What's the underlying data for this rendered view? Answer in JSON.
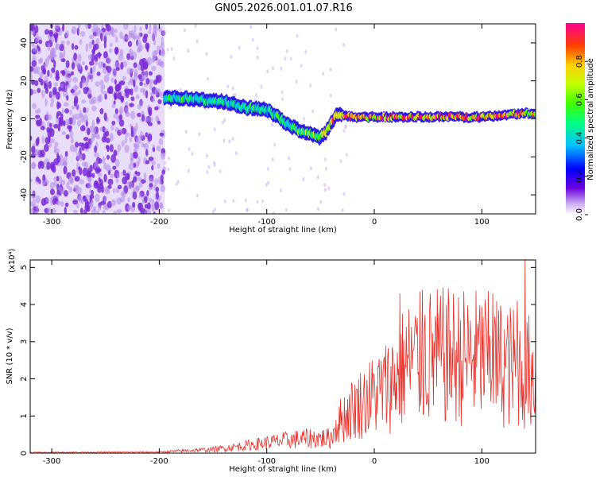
{
  "title": "GN05.2026.001.01.07.R16",
  "colors": {
    "snr_line": "#e8332c",
    "noise_purple": "#7a2bd6",
    "noise_light": "#d7c2f5",
    "axis": "#000000"
  },
  "colorbar": {
    "label": "Normalized spectral amplitude",
    "range": [
      0,
      1
    ],
    "ticks": [
      "0.0",
      "0.2",
      "0.4",
      "0.6",
      "0.8"
    ],
    "tick_values": [
      0.0,
      0.2,
      0.4,
      0.6,
      0.8
    ]
  },
  "chart_data": [
    {
      "type": "heatmap",
      "name": "spectrogram",
      "title": "GN05.2026.001.01.07.R16",
      "xlabel": "Height of straight line (km)",
      "ylabel": "Frequency (Hz)",
      "xlim": [
        -320,
        150
      ],
      "ylim": [
        -50,
        50
      ],
      "x_ticks": [
        -300,
        -200,
        -100,
        0,
        100
      ],
      "x_tick_labels": [
        "-300",
        "-200",
        "-100",
        "0",
        "100"
      ],
      "y_ticks": [
        -40,
        -20,
        0,
        20,
        40
      ],
      "y_tick_labels": [
        "-40",
        "-20",
        "0",
        "20",
        "40"
      ],
      "noise_region_x": [
        -320,
        -195
      ],
      "ridge": {
        "x": [
          -195,
          -180,
          -160,
          -140,
          -120,
          -100,
          -90,
          -80,
          -70,
          -60,
          -50,
          -45,
          -40,
          -35,
          -30,
          -20,
          0,
          20,
          40,
          60,
          80,
          100,
          120,
          140,
          150
        ],
        "y": [
          11,
          11,
          10,
          9,
          6,
          5,
          1,
          -3,
          -6,
          -8,
          -10,
          -7,
          -2,
          2,
          2,
          1,
          1,
          1,
          1,
          1,
          1,
          1,
          2,
          3,
          3
        ],
        "amplitude": [
          0.5,
          0.5,
          0.45,
          0.45,
          0.5,
          0.45,
          0.5,
          0.5,
          0.55,
          0.6,
          0.6,
          0.7,
          0.8,
          0.9,
          0.9,
          0.9,
          0.85,
          0.85,
          0.85,
          0.9,
          0.85,
          0.85,
          0.85,
          0.8,
          0.8
        ]
      }
    },
    {
      "type": "line",
      "name": "snr",
      "xlabel": "Height of straight line (km)",
      "ylabel": "SNR (10 * v/v)",
      "y_scale_label": "(x10⁴)",
      "xlim": [
        -320,
        150
      ],
      "ylim": [
        0,
        5.2
      ],
      "x_ticks": [
        -300,
        -200,
        -100,
        0,
        100
      ],
      "x_tick_labels": [
        "-300",
        "-200",
        "-100",
        "0",
        "100"
      ],
      "y_ticks": [
        0,
        1,
        2,
        3,
        4,
        5
      ],
      "y_tick_labels": [
        "0",
        "1",
        "2",
        "3",
        "4",
        "5"
      ],
      "envelope": {
        "x": [
          -320,
          -200,
          -180,
          -150,
          -120,
          -100,
          -80,
          -60,
          -40,
          -35,
          -30,
          -20,
          -10,
          0,
          10,
          20,
          30,
          50,
          80,
          100,
          120,
          140,
          150
        ],
        "y": [
          0.02,
          0.03,
          0.06,
          0.1,
          0.2,
          0.28,
          0.35,
          0.4,
          0.4,
          0.8,
          1.0,
          1.3,
          1.5,
          1.7,
          1.9,
          2.2,
          2.6,
          2.8,
          2.8,
          2.8,
          2.6,
          2.4,
          2.3
        ]
      },
      "peaks": [
        {
          "x": 24,
          "y": 4.3
        },
        {
          "x": 45,
          "y": 4.4
        },
        {
          "x": 110,
          "y": 4.3
        },
        {
          "x": 133,
          "y": 4.1
        },
        {
          "x": 140,
          "y": 5.2
        }
      ]
    }
  ]
}
